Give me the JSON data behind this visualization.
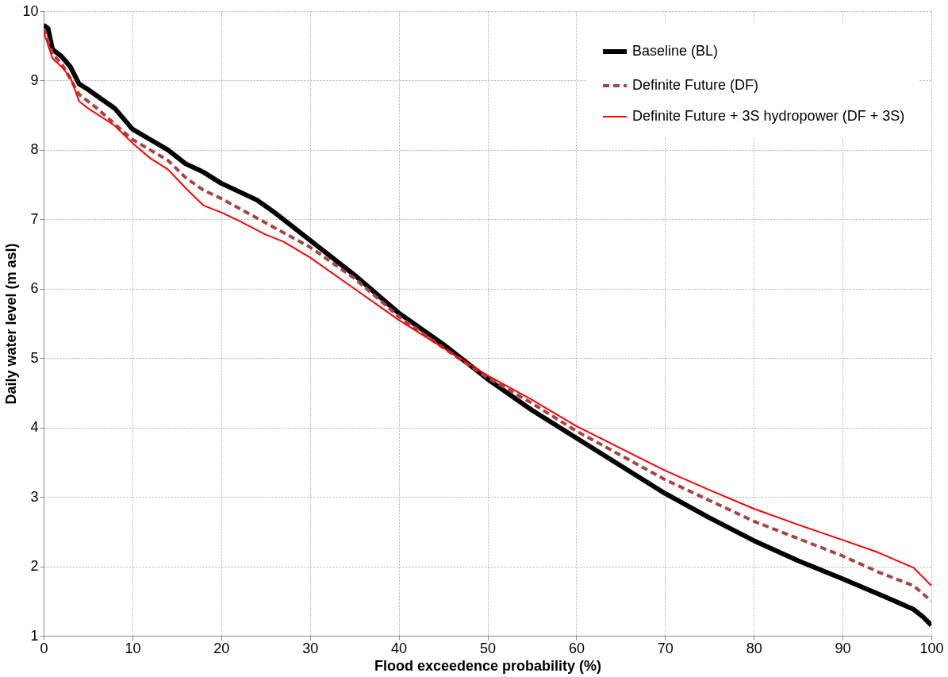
{
  "chart_data": {
    "type": "line",
    "xlabel": "Flood exceedence probability (%)",
    "ylabel": "Daily water level (m asl)",
    "xlim": [
      0,
      100
    ],
    "xticks": [
      0,
      10,
      20,
      30,
      40,
      50,
      60,
      70,
      80,
      90,
      100
    ],
    "ylim": [
      1,
      10
    ],
    "yticks": [
      1,
      2,
      3,
      4,
      5,
      6,
      7,
      8,
      9,
      10
    ],
    "grid": true,
    "legend": "top right",
    "marker": "none",
    "series": [
      {
        "name": "Baseline (BL)",
        "color": "#000000",
        "line_style": "solid",
        "x": [
          0,
          0.5,
          1,
          2,
          3,
          4,
          5,
          6,
          8,
          10,
          12,
          14,
          16,
          18,
          20,
          22,
          24,
          26,
          28,
          30,
          35,
          40,
          45,
          50,
          55,
          60,
          65,
          70,
          75,
          80,
          85,
          90,
          95,
          98,
          99,
          100
        ],
        "values": [
          9.8,
          9.75,
          9.45,
          9.35,
          9.2,
          8.95,
          8.87,
          8.78,
          8.6,
          8.3,
          8.15,
          8.0,
          7.8,
          7.68,
          7.52,
          7.4,
          7.28,
          7.1,
          6.9,
          6.7,
          6.2,
          5.65,
          5.2,
          4.7,
          4.25,
          3.85,
          3.45,
          3.05,
          2.7,
          2.37,
          2.08,
          1.82,
          1.55,
          1.38,
          1.28,
          1.15
        ]
      },
      {
        "name": "Definite Future (DF)",
        "color": "#a84444",
        "line_style": "dashed",
        "x": [
          0,
          1,
          2,
          4,
          6,
          10,
          12,
          14,
          16,
          18,
          20,
          25,
          30,
          35,
          40,
          45,
          50,
          55,
          60,
          65,
          70,
          75,
          80,
          85,
          90,
          94,
          98,
          100
        ],
        "values": [
          9.75,
          9.38,
          9.25,
          8.8,
          8.6,
          8.15,
          8.0,
          7.85,
          7.6,
          7.42,
          7.3,
          6.95,
          6.6,
          6.15,
          5.6,
          5.15,
          4.72,
          4.35,
          3.95,
          3.6,
          3.25,
          2.95,
          2.65,
          2.4,
          2.15,
          1.92,
          1.72,
          1.5
        ]
      },
      {
        "name": "Definite Future + 3S hydropower (DF + 3S)",
        "color": "#ff0000",
        "line_style": "solid",
        "x": [
          0,
          1,
          2,
          3,
          4,
          5,
          8,
          10,
          12,
          14,
          16,
          18,
          20,
          22,
          25,
          27,
          30,
          35,
          40,
          45,
          50,
          55,
          60,
          65,
          70,
          75,
          80,
          85,
          90,
          94,
          98,
          99,
          100
        ],
        "values": [
          9.7,
          9.32,
          9.2,
          9.05,
          8.7,
          8.6,
          8.35,
          8.1,
          7.88,
          7.72,
          7.45,
          7.2,
          7.1,
          6.98,
          6.78,
          6.68,
          6.45,
          6.0,
          5.55,
          5.15,
          4.75,
          4.4,
          4.02,
          3.7,
          3.38,
          3.1,
          2.83,
          2.6,
          2.38,
          2.2,
          1.98,
          1.85,
          1.72
        ]
      }
    ]
  }
}
